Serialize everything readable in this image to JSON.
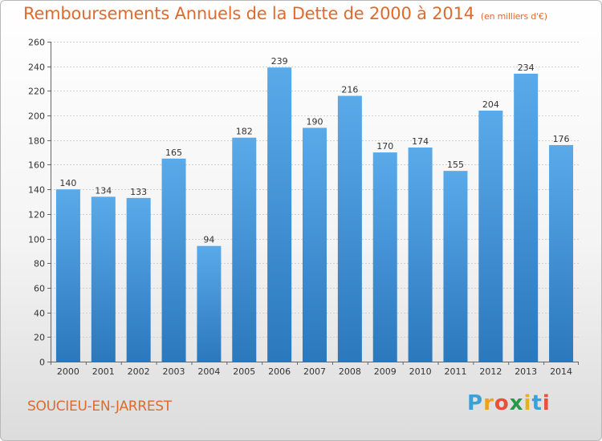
{
  "chart_data": {
    "type": "bar",
    "title": "Remboursements Annuels de la Dette de 2000 à 2014",
    "subtitle": "(en milliers d'€)",
    "categories": [
      "2000",
      "2001",
      "2002",
      "2003",
      "2004",
      "2005",
      "2006",
      "2007",
      "2008",
      "2009",
      "2010",
      "2011",
      "2012",
      "2013",
      "2014"
    ],
    "values": [
      140,
      134,
      133,
      165,
      94,
      182,
      239,
      190,
      216,
      170,
      174,
      155,
      204,
      234,
      176
    ],
    "ylim": [
      0,
      260
    ],
    "yticks": [
      0,
      20,
      40,
      60,
      80,
      100,
      120,
      140,
      160,
      180,
      200,
      220,
      240,
      260
    ],
    "xlabel": "",
    "ylabel": "",
    "grid": true,
    "bar_color": "#3a8fd6",
    "bar_color_light": "#5aaaea",
    "bar_color_dark": "#2b78bd"
  },
  "commune": "SOUCIEU-EN-JARREST",
  "brand": {
    "letters": [
      "P",
      "r",
      "o",
      "x",
      "i",
      "t",
      "i"
    ],
    "colors": [
      "#3aa0d8",
      "#f0a020",
      "#e8503a",
      "#2a9a4a",
      "#e8b020",
      "#3aa0d8",
      "#e8503a"
    ]
  },
  "colors": {
    "title": "#e06a2c",
    "grid": "#d0d0d0"
  }
}
